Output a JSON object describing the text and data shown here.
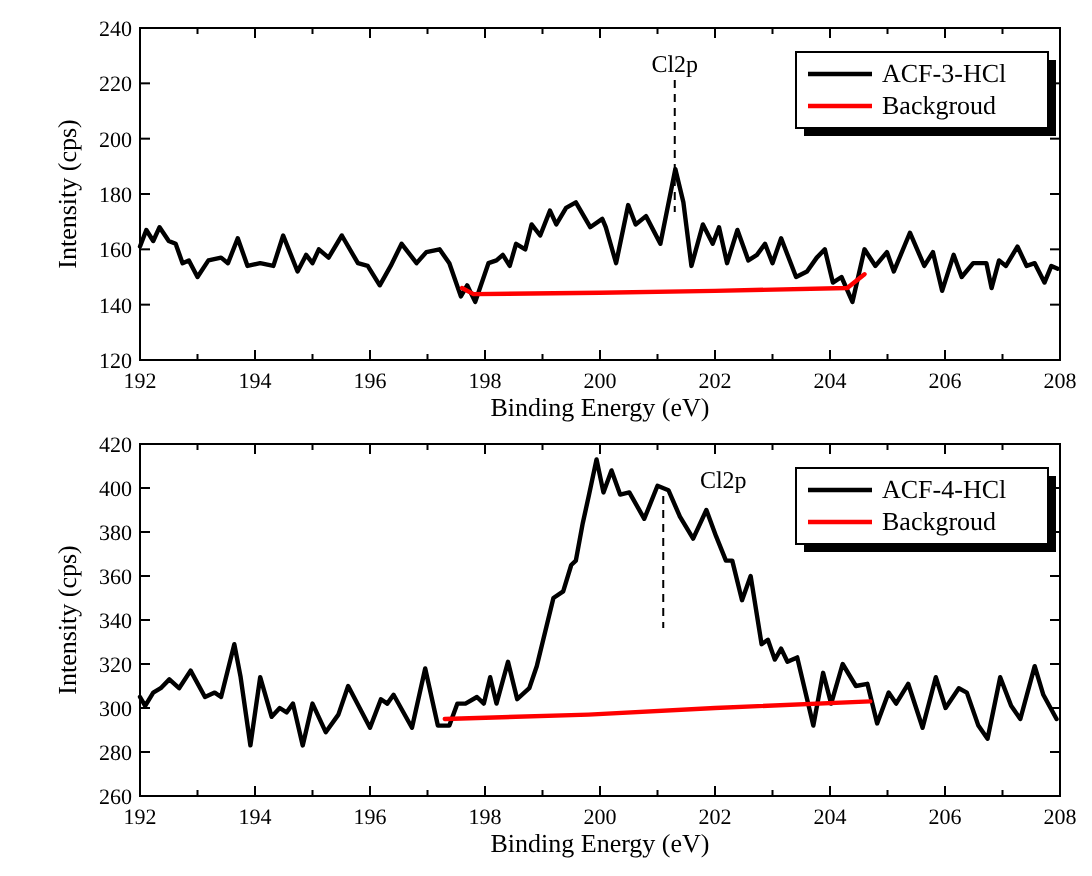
{
  "chart_data": [
    {
      "type": "line",
      "xlabel": "Binding Energy (eV)",
      "ylabel": "Intensity (cps)",
      "xlim": [
        192,
        208
      ],
      "ylim": [
        120,
        240
      ],
      "xticks": [
        192,
        {
          "value": 193,
          "label": null
        },
        194,
        {
          "value": 195,
          "label": null
        },
        196,
        {
          "value": 197,
          "label": null
        },
        198,
        {
          "value": 199,
          "label": null
        },
        200,
        {
          "value": 201,
          "label": null
        },
        202,
        {
          "value": 203,
          "label": null
        },
        204,
        {
          "value": 205,
          "label": null
        },
        206,
        {
          "value": 207,
          "label": null
        },
        208
      ],
      "yticks": [
        120,
        140,
        160,
        180,
        200,
        220,
        240
      ],
      "legend": "top right",
      "line_style": "solid",
      "marker": "none",
      "ref_lines": [
        {
          "axis": "x",
          "value": 201.3,
          "label": "Cl2p",
          "line_style": "dashed",
          "color": "#000000"
        }
      ],
      "series": [
        {
          "name": "ACF-3-HCl",
          "color": "#000000",
          "x": [
            192,
            192.11,
            192.23,
            192.34,
            192.5,
            192.62,
            192.74,
            192.85,
            193.0,
            193.19,
            193.41,
            193.53,
            193.7,
            193.87,
            194.09,
            194.32,
            194.49,
            194.74,
            194.89,
            195.0,
            195.11,
            195.28,
            195.51,
            195.79,
            195.96,
            196.17,
            196.36,
            196.55,
            196.81,
            196.98,
            197.21,
            197.38,
            197.58,
            197.69,
            197.83,
            198.06,
            198.2,
            198.31,
            198.43,
            198.54,
            198.7,
            198.81,
            198.96,
            199.13,
            199.24,
            199.41,
            199.58,
            199.83,
            200.04,
            200.1,
            200.28,
            200.49,
            200.62,
            200.8,
            201.05,
            201.31,
            201.45,
            201.59,
            201.79,
            201.96,
            202.07,
            202.21,
            202.39,
            202.58,
            202.73,
            202.87,
            203.0,
            203.15,
            203.41,
            203.6,
            203.77,
            203.91,
            204.05,
            204.2,
            204.39,
            204.6,
            204.79,
            204.99,
            205.11,
            205.39,
            205.64,
            205.79,
            205.95,
            206.15,
            206.29,
            206.49,
            206.72,
            206.81,
            206.94,
            207.06,
            207.26,
            207.42,
            207.56,
            207.73,
            207.85,
            207.96
          ],
          "values": [
            161,
            167,
            163,
            168,
            163,
            162,
            155,
            156,
            150,
            156,
            157,
            155,
            164,
            154,
            155,
            154,
            165,
            152,
            158,
            155,
            160,
            157,
            165,
            155,
            154,
            147,
            154,
            162,
            155,
            159,
            160,
            155,
            143,
            147,
            141,
            155,
            156,
            158,
            154,
            162,
            160,
            169,
            165,
            174,
            169,
            175,
            177,
            168,
            171,
            168,
            155,
            176,
            169,
            172,
            162,
            189,
            177,
            154,
            169,
            162,
            168,
            155,
            167,
            156,
            158,
            162,
            155,
            164,
            150,
            152,
            157,
            160,
            148,
            150,
            141,
            160,
            154,
            159,
            152,
            166,
            154,
            159,
            145,
            158,
            150,
            155,
            155,
            146,
            156,
            154,
            161,
            154,
            155,
            148,
            154,
            153
          ]
        },
        {
          "name": "Backgroud",
          "color": "#ff0000",
          "x": [
            197.6,
            197.8,
            200,
            202,
            204.3,
            204.6
          ],
          "values": [
            146,
            143.8,
            144.3,
            145,
            146,
            151
          ]
        }
      ]
    },
    {
      "type": "line",
      "xlabel": "Binding Energy (eV)",
      "ylabel": "Intensity (cps)",
      "xlim": [
        192,
        208
      ],
      "ylim": [
        260,
        420
      ],
      "xticks": [
        192,
        {
          "value": 193,
          "label": null
        },
        194,
        {
          "value": 195,
          "label": null
        },
        196,
        {
          "value": 197,
          "label": null
        },
        198,
        {
          "value": 199,
          "label": null
        },
        200,
        {
          "value": 201,
          "label": null
        },
        202,
        {
          "value": 203,
          "label": null
        },
        204,
        {
          "value": 205,
          "label": null
        },
        206,
        {
          "value": 207,
          "label": null
        },
        208
      ],
      "yticks": [
        260,
        280,
        300,
        320,
        340,
        360,
        380,
        400,
        420
      ],
      "legend": "top right",
      "line_style": "solid",
      "marker": "none",
      "ref_lines": [
        {
          "axis": "x",
          "value": 201.1,
          "label": "Cl2p",
          "line_style": "dashed",
          "color": "#000000"
        }
      ],
      "series": [
        {
          "name": "ACF-4-HCl",
          "color": "#000000",
          "x": [
            192,
            192.09,
            192.23,
            192.36,
            192.51,
            192.68,
            192.88,
            193.13,
            193.3,
            193.41,
            193.64,
            193.75,
            193.92,
            194.09,
            194.29,
            194.43,
            194.55,
            194.66,
            194.83,
            195.0,
            195.23,
            195.45,
            195.62,
            196.0,
            196.19,
            196.3,
            196.41,
            196.73,
            196.96,
            197.18,
            197.38,
            197.52,
            197.66,
            197.86,
            197.98,
            198.09,
            198.2,
            198.4,
            198.56,
            198.77,
            198.9,
            199.19,
            199.36,
            199.5,
            199.58,
            199.7,
            199.81,
            199.94,
            200.06,
            200.2,
            200.35,
            200.51,
            200.77,
            201.0,
            201.19,
            201.39,
            201.62,
            201.85,
            202.02,
            202.19,
            202.3,
            202.47,
            202.62,
            202.81,
            202.92,
            203.04,
            203.15,
            203.26,
            203.43,
            203.71,
            203.88,
            204.02,
            204.22,
            204.45,
            204.65,
            204.82,
            205.02,
            205.15,
            205.36,
            205.61,
            205.84,
            206.01,
            206.24,
            206.38,
            206.58,
            206.74,
            206.96,
            207.15,
            207.31,
            207.56,
            207.71,
            207.94
          ],
          "values": [
            305,
            301,
            307,
            309,
            313,
            309,
            317,
            305,
            307,
            305,
            329,
            314,
            283,
            314,
            296,
            300,
            298,
            302,
            283,
            302,
            289,
            297,
            310,
            291,
            304,
            302,
            306,
            291,
            318,
            292,
            292,
            302,
            302,
            305,
            302,
            314,
            302,
            321,
            304,
            309,
            319,
            350,
            353,
            365,
            367,
            384,
            397,
            413,
            398,
            408,
            397,
            398,
            386,
            401,
            399,
            387,
            377,
            390,
            378,
            367,
            367,
            349,
            360,
            329,
            331,
            322,
            327,
            321,
            323,
            292,
            316,
            302,
            320,
            310,
            311,
            293,
            307,
            302,
            311,
            291,
            314,
            300,
            309,
            307,
            292,
            286,
            314,
            301,
            295,
            319,
            306,
            295
          ]
        },
        {
          "name": "Backgroud",
          "color": "#ff0000",
          "x": [
            197.3,
            199.8,
            202,
            204.7
          ],
          "values": [
            295,
            297,
            300,
            303
          ]
        }
      ]
    }
  ]
}
